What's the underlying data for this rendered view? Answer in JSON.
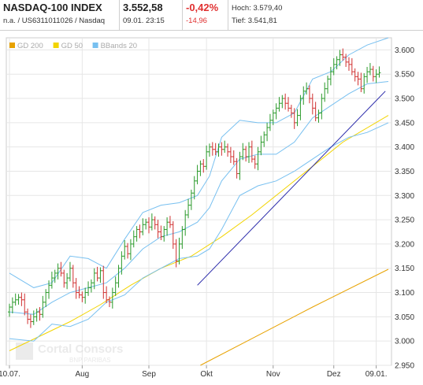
{
  "header": {
    "title": "NASDAQ-100 INDEX",
    "subtitle": "n.a. / US6311011026 / Nasdaq",
    "price": "3.552,58",
    "datetime": "09.01. 23:15",
    "change_pct": "-0,42%",
    "change_abs": "-14,96",
    "high_label": "Hoch: 3.579,40",
    "low_label": "Tief: 3.541,81",
    "accent_red": "#e03030"
  },
  "legend": [
    {
      "label": "GD 200",
      "color": "#e8a200"
    },
    {
      "label": "GD 50",
      "color": "#f2d400"
    },
    {
      "label": "BBands 20",
      "color": "#78c0f0"
    }
  ],
  "watermark": {
    "line1": "Cortal Consors",
    "line2": "BNP PARIBAS"
  },
  "chart_data": {
    "type": "ohlc",
    "y_ticks": [
      "3.600",
      "3.550",
      "3.500",
      "3.450",
      "3.400",
      "3.350",
      "3.300",
      "3.250",
      "3.200",
      "3.150",
      "3.100",
      "3.050",
      "3.000",
      "2.950"
    ],
    "ylim": [
      2950,
      3625
    ],
    "xlim": [
      0,
      125
    ],
    "x_ticks": [
      {
        "label": "10.07.",
        "x": 0
      },
      {
        "label": "Aug",
        "x": 24
      },
      {
        "label": "Sep",
        "x": 46
      },
      {
        "label": "Okt",
        "x": 65
      },
      {
        "label": "Nov",
        "x": 87
      },
      {
        "label": "Dez",
        "x": 107
      },
      {
        "label": "09.01.",
        "x": 121
      }
    ],
    "grid": true,
    "up_color": "#2a9a2a",
    "down_color": "#d03030",
    "closes": [
      3070,
      3080,
      3085,
      3090,
      3085,
      3060,
      3045,
      3040,
      3050,
      3060,
      3055,
      3080,
      3100,
      3115,
      3130,
      3140,
      3150,
      3140,
      3120,
      3130,
      3150,
      3120,
      3100,
      3095,
      3090,
      3100,
      3110,
      3120,
      3140,
      3130,
      3145,
      3100,
      3085,
      3080,
      3100,
      3120,
      3150,
      3175,
      3195,
      3180,
      3200,
      3215,
      3230,
      3225,
      3240,
      3245,
      3235,
      3250,
      3240,
      3225,
      3215,
      3230,
      3245,
      3240,
      3200,
      3165,
      3200,
      3230,
      3260,
      3280,
      3305,
      3330,
      3350,
      3365,
      3360,
      3390,
      3400,
      3395,
      3390,
      3400,
      3395,
      3400,
      3390,
      3380,
      3370,
      3345,
      3380,
      3395,
      3380,
      3400,
      3375,
      3365,
      3390,
      3410,
      3425,
      3440,
      3455,
      3470,
      3480,
      3490,
      3500,
      3490,
      3480,
      3470,
      3450,
      3465,
      3500,
      3515,
      3520,
      3500,
      3480,
      3460,
      3470,
      3500,
      3520,
      3540,
      3555,
      3570,
      3580,
      3590,
      3585,
      3575,
      3570,
      3555,
      3545,
      3540,
      3520,
      3545,
      3555,
      3560,
      3545,
      3550,
      3553
    ],
    "lines": [
      {
        "name": "GD 200",
        "color": "#e8a200",
        "points": [
          [
            63,
            2950
          ],
          [
            80,
            3005
          ],
          [
            100,
            3070
          ],
          [
            125,
            3148
          ]
        ]
      },
      {
        "name": "GD 50",
        "color": "#f2d400",
        "points": [
          [
            0,
            2980
          ],
          [
            10,
            3010
          ],
          [
            20,
            3040
          ],
          [
            30,
            3075
          ],
          [
            40,
            3115
          ],
          [
            50,
            3150
          ],
          [
            60,
            3175
          ],
          [
            70,
            3215
          ],
          [
            80,
            3260
          ],
          [
            90,
            3310
          ],
          [
            100,
            3360
          ],
          [
            110,
            3410
          ],
          [
            125,
            3465
          ]
        ]
      },
      {
        "name": "BBands 20 upper",
        "color": "#78c0f0",
        "points": [
          [
            0,
            3140
          ],
          [
            8,
            3110
          ],
          [
            14,
            3120
          ],
          [
            20,
            3175
          ],
          [
            26,
            3170
          ],
          [
            32,
            3150
          ],
          [
            38,
            3210
          ],
          [
            44,
            3265
          ],
          [
            50,
            3280
          ],
          [
            56,
            3285
          ],
          [
            62,
            3300
          ],
          [
            66,
            3340
          ],
          [
            70,
            3420
          ],
          [
            76,
            3455
          ],
          [
            82,
            3450
          ],
          [
            88,
            3450
          ],
          [
            94,
            3470
          ],
          [
            100,
            3540
          ],
          [
            106,
            3555
          ],
          [
            112,
            3590
          ],
          [
            118,
            3610
          ],
          [
            125,
            3625
          ]
        ]
      },
      {
        "name": "BBands 20 middle",
        "color": "#78c0f0",
        "points": [
          [
            0,
            3060
          ],
          [
            8,
            3055
          ],
          [
            14,
            3080
          ],
          [
            20,
            3100
          ],
          [
            26,
            3110
          ],
          [
            32,
            3120
          ],
          [
            38,
            3150
          ],
          [
            44,
            3190
          ],
          [
            50,
            3215
          ],
          [
            56,
            3225
          ],
          [
            62,
            3245
          ],
          [
            66,
            3275
          ],
          [
            70,
            3330
          ],
          [
            76,
            3375
          ],
          [
            82,
            3385
          ],
          [
            88,
            3385
          ],
          [
            94,
            3410
          ],
          [
            100,
            3460
          ],
          [
            106,
            3485
          ],
          [
            112,
            3510
          ],
          [
            118,
            3530
          ],
          [
            125,
            3535
          ]
        ]
      },
      {
        "name": "BBands 20 lower",
        "color": "#78c0f0",
        "points": [
          [
            0,
            3005
          ],
          [
            8,
            3000
          ],
          [
            14,
            3035
          ],
          [
            20,
            3030
          ],
          [
            26,
            3045
          ],
          [
            32,
            3080
          ],
          [
            38,
            3095
          ],
          [
            44,
            3130
          ],
          [
            50,
            3150
          ],
          [
            56,
            3170
          ],
          [
            62,
            3175
          ],
          [
            66,
            3190
          ],
          [
            70,
            3230
          ],
          [
            76,
            3300
          ],
          [
            82,
            3320
          ],
          [
            88,
            3330
          ],
          [
            94,
            3350
          ],
          [
            100,
            3375
          ],
          [
            106,
            3400
          ],
          [
            112,
            3420
          ],
          [
            118,
            3430
          ],
          [
            125,
            3450
          ]
        ]
      },
      {
        "name": "trendline",
        "color": "#2a2aaa",
        "points": [
          [
            62,
            3115
          ],
          [
            124,
            3515
          ]
        ]
      }
    ]
  }
}
